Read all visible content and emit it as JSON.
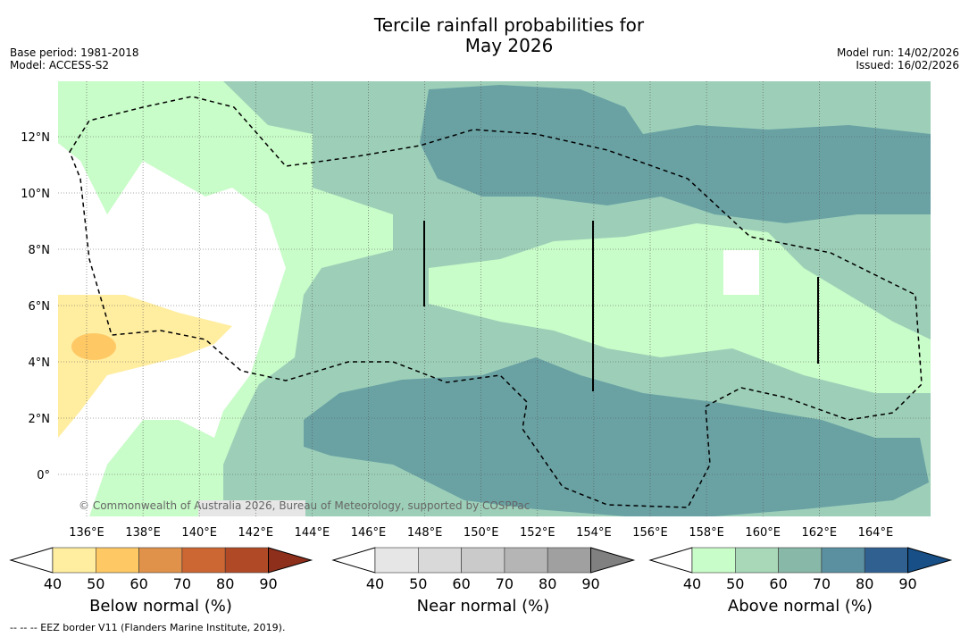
{
  "title_line1": "Tercile rainfall probabilities for",
  "title_line2": "May 2026",
  "base_period": "Base period: 1981-2018",
  "model": "Model: ACCESS-S2",
  "model_run": "Model run: 14/02/2026",
  "issued": "Issued: 16/02/2026",
  "copyright": "© Commonwealth of Australia 2026, Bureau of Meteorology, supported by COSPPac",
  "footnote": "--  --  -- EEZ border V11 (Flanders Marine Institute, 2019).",
  "lon_ticks": [
    "136°E",
    "138°E",
    "140°E",
    "142°E",
    "144°E",
    "146°E",
    "148°E",
    "150°E",
    "152°E",
    "154°E",
    "156°E",
    "158°E",
    "160°E",
    "162°E",
    "164°E"
  ],
  "lat_ticks": [
    "12°N",
    "10°N",
    "8°N",
    "6°N",
    "4°N",
    "2°N",
    "0°"
  ],
  "colorbars": [
    {
      "label": "Below normal (%)",
      "ticks": [
        "40",
        "50",
        "60",
        "70",
        "80",
        "90"
      ],
      "colors": [
        "#ffeda0",
        "#fec965",
        "#e0924a",
        "#cc6633",
        "#b04a26",
        "#8e2f1c"
      ]
    },
    {
      "label": "Near normal (%)",
      "ticks": [
        "40",
        "50",
        "60",
        "70",
        "80",
        "90"
      ],
      "colors": [
        "#e6e6e6",
        "#d9d9d9",
        "#cacaca",
        "#b5b5b5",
        "#a0a0a0",
        "#808080"
      ]
    },
    {
      "label": "Above normal (%)",
      "ticks": [
        "40",
        "50",
        "60",
        "70",
        "80",
        "90"
      ],
      "colors": [
        "#c8fcc8",
        "#a8d8b8",
        "#88b8a8",
        "#5a90a0",
        "#306090",
        "#174f86"
      ]
    }
  ]
}
